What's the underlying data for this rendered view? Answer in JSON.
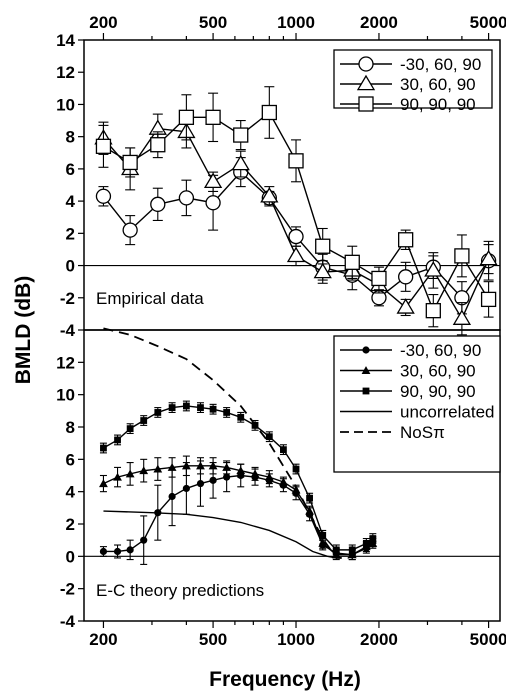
{
  "chart_data": [
    {
      "type": "line",
      "panel_label": "Empirical data",
      "xscale": "log",
      "xlim": [
        170,
        5500
      ],
      "ylim": [
        -4,
        14
      ],
      "yticks": [
        -4,
        -2,
        0,
        2,
        4,
        6,
        8,
        10,
        12,
        14
      ],
      "xticks_top": [
        200,
        500,
        1000,
        2000,
        5000
      ],
      "xtick_labels_top": [
        "200",
        "500",
        "1000",
        "2000",
        "5000"
      ],
      "legend_position": "top-right",
      "series": [
        {
          "name": "-30, 60, 90",
          "marker": "circle",
          "x": [
            200,
            250,
            315,
            400,
            500,
            630,
            800,
            1000,
            1250,
            1600,
            2000,
            2500,
            3150,
            4000,
            5000
          ],
          "y": [
            4.3,
            2.2,
            3.8,
            4.2,
            3.9,
            5.8,
            4.2,
            1.8,
            -0.1,
            -0.6,
            -2.0,
            -0.7,
            -0.1,
            -2.0,
            0.3
          ],
          "err": [
            0.6,
            0.9,
            1.0,
            1.1,
            1.7,
            0.9,
            0.4,
            0.6,
            0.8,
            0.9,
            0.5,
            0.9,
            0.7,
            1.0,
            1.2
          ]
        },
        {
          "name": "30, 60, 90",
          "marker": "triangle",
          "x": [
            200,
            250,
            315,
            400,
            500,
            630,
            800,
            1000,
            1250,
            1600,
            2000,
            2500,
            3150,
            4000,
            5000
          ],
          "y": [
            7.9,
            6.0,
            8.5,
            8.3,
            5.2,
            6.3,
            4.3,
            0.6,
            -0.4,
            -0.3,
            -1.2,
            -2.6,
            -0.3,
            -3.3,
            0.4
          ],
          "err": [
            1.0,
            1.3,
            0.9,
            1.0,
            0.6,
            0.8,
            0.6,
            0.6,
            0.7,
            0.6,
            0.5,
            0.5,
            1.1,
            1.0,
            0.9
          ]
        },
        {
          "name": "90, 90, 90",
          "marker": "square",
          "x": [
            200,
            250,
            315,
            400,
            500,
            630,
            800,
            1000,
            1250,
            1600,
            2000,
            2500,
            3150,
            4000,
            5000
          ],
          "y": [
            7.4,
            6.4,
            7.5,
            9.2,
            9.2,
            8.1,
            9.5,
            6.5,
            1.2,
            0.2,
            -0.8,
            1.6,
            -2.8,
            0.6,
            -2.1
          ],
          "err": [
            1.3,
            0.9,
            0.8,
            1.4,
            1.5,
            0.9,
            1.6,
            1.3,
            1.1,
            1.0,
            0.7,
            0.6,
            1.0,
            1.3,
            1.1
          ]
        }
      ]
    },
    {
      "type": "line",
      "panel_label": "E-C theory predictions",
      "xscale": "log",
      "xlim": [
        170,
        5500
      ],
      "ylim": [
        -4,
        14
      ],
      "yticks": [
        -4,
        -2,
        0,
        2,
        4,
        6,
        8,
        10,
        12
      ],
      "xticks_bottom": [
        200,
        500,
        1000,
        2000,
        5000
      ],
      "xtick_labels_bottom": [
        "200",
        "500",
        "1000",
        "2000",
        "5000"
      ],
      "legend_position": "top-right",
      "series": [
        {
          "name": "-30, 60, 90",
          "marker": "circle-filled",
          "x": [
            200,
            225,
            250,
            280,
            315,
            355,
            400,
            450,
            500,
            560,
            630,
            710,
            800,
            900,
            1000,
            1120,
            1250,
            1400,
            1600,
            1800,
            1900
          ],
          "y": [
            0.3,
            0.3,
            0.4,
            1.0,
            2.7,
            3.7,
            4.2,
            4.5,
            4.7,
            4.9,
            5.0,
            4.9,
            4.7,
            4.4,
            3.9,
            2.6,
            0.7,
            0.2,
            0.1,
            0.5,
            0.9
          ],
          "err": [
            0.3,
            0.4,
            0.6,
            1.5,
            1.7,
            1.8,
            1.6,
            1.4,
            1.1,
            0.9,
            0.7,
            0.5,
            0.4,
            0.4,
            0.4,
            0.4,
            0.3,
            0.3,
            0.3,
            0.3,
            0.3
          ]
        },
        {
          "name": "30, 60, 90",
          "marker": "triangle-filled",
          "x": [
            200,
            225,
            250,
            280,
            315,
            355,
            400,
            450,
            500,
            560,
            630,
            710,
            800,
            900,
            1000,
            1120,
            1250,
            1400,
            1600,
            1800,
            1900
          ],
          "y": [
            4.5,
            4.9,
            5.1,
            5.3,
            5.4,
            5.5,
            5.6,
            5.6,
            5.6,
            5.5,
            5.3,
            5.1,
            4.9,
            4.6,
            4.1,
            2.8,
            0.8,
            0.1,
            0.1,
            0.6,
            0.8
          ],
          "err": [
            0.5,
            0.6,
            0.7,
            0.7,
            0.7,
            0.6,
            0.6,
            0.5,
            0.5,
            0.4,
            0.4,
            0.4,
            0.4,
            0.3,
            0.3,
            0.3,
            0.3,
            0.3,
            0.3,
            0.3,
            0.3
          ]
        },
        {
          "name": "90, 90, 90",
          "marker": "square-filled",
          "x": [
            200,
            225,
            250,
            280,
            315,
            355,
            400,
            450,
            500,
            560,
            630,
            710,
            800,
            900,
            1000,
            1120,
            1250,
            1400,
            1600,
            1800,
            1900
          ],
          "y": [
            6.7,
            7.2,
            7.9,
            8.4,
            8.9,
            9.2,
            9.3,
            9.2,
            9.1,
            8.9,
            8.6,
            8.1,
            7.4,
            6.6,
            5.4,
            3.6,
            1.3,
            0.4,
            0.4,
            0.8,
            1.1
          ],
          "err": [
            0.3,
            0.3,
            0.3,
            0.3,
            0.3,
            0.3,
            0.3,
            0.3,
            0.3,
            0.3,
            0.3,
            0.3,
            0.3,
            0.3,
            0.3,
            0.3,
            0.3,
            0.3,
            0.3,
            0.3,
            0.3
          ]
        },
        {
          "name": "uncorrelated",
          "style": "solid",
          "x": [
            200,
            300,
            400,
            500,
            630,
            800,
            1000,
            1150,
            1300,
            1400
          ],
          "y": [
            2.8,
            2.7,
            2.6,
            2.4,
            2.1,
            1.6,
            0.9,
            0.3,
            0.0,
            -0.1
          ]
        },
        {
          "name": "NoSπ",
          "style": "dashed",
          "x": [
            200,
            250,
            315,
            400,
            500,
            630,
            800,
            1000,
            1250,
            1400,
            1550
          ],
          "y": [
            14.1,
            13.7,
            13.0,
            12.2,
            10.9,
            9.3,
            7.0,
            4.3,
            1.1,
            -0.1,
            -0.1
          ]
        }
      ]
    }
  ],
  "axes": {
    "ylabel": "BMLD (dB)",
    "xlabel": "Frequency (Hz)"
  }
}
